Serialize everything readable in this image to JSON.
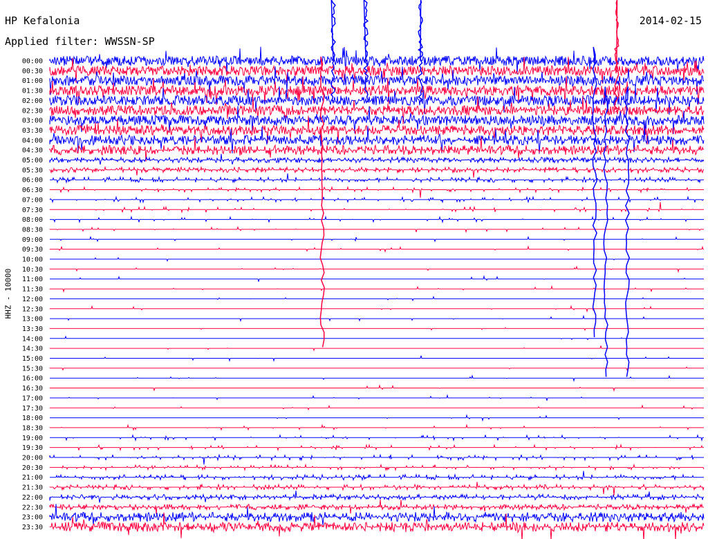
{
  "header": {
    "station": "HP Kefalonia",
    "filter_label": "Applied filter: WWSSN-SP",
    "date": "2014-02-15"
  },
  "chart_data": {
    "type": "line",
    "title": "HP Kefalonia",
    "subtitle": "Applied filter: WWSSN-SP",
    "date": "2014-02-15",
    "ylabel": "HHZ - 10000",
    "row_interval_minutes": 30,
    "rows": [
      "00:00",
      "00:30",
      "01:00",
      "01:30",
      "02:00",
      "02:30",
      "03:00",
      "03:30",
      "04:00",
      "04:30",
      "05:00",
      "05:30",
      "06:00",
      "06:30",
      "07:00",
      "07:30",
      "08:00",
      "08:30",
      "09:00",
      "09:30",
      "10:00",
      "10:30",
      "11:00",
      "11:30",
      "12:00",
      "12:30",
      "13:00",
      "13:30",
      "14:00",
      "14:30",
      "15:00",
      "15:30",
      "16:00",
      "16:30",
      "17:00",
      "17:30",
      "18:00",
      "18:30",
      "19:00",
      "19:30",
      "20:00",
      "20:30",
      "21:00",
      "21:30",
      "22:00",
      "22:30",
      "23:00",
      "23:30"
    ],
    "row_colors": [
      "#0000ff",
      "#ff0040"
    ],
    "activity_level": [
      0.95,
      0.9,
      0.95,
      0.9,
      0.9,
      0.85,
      0.9,
      0.75,
      0.7,
      0.6,
      0.5,
      0.45,
      0.25,
      0.12,
      0.08,
      0.05,
      0.04,
      0.03,
      0.02,
      0.02,
      0.01,
      0.01,
      0.01,
      0.01,
      0.01,
      0.01,
      0.01,
      0.01,
      0.01,
      0.01,
      0.01,
      0.01,
      0.01,
      0.01,
      0.01,
      0.01,
      0.01,
      0.02,
      0.06,
      0.08,
      0.12,
      0.15,
      0.25,
      0.3,
      0.4,
      0.5,
      0.6,
      0.7
    ],
    "large_events": [
      {
        "row": "00:00",
        "minute": 13,
        "direction": "up"
      },
      {
        "row": "00:00",
        "minute": 14.5,
        "direction": "up"
      },
      {
        "row": "00:00",
        "minute": 17,
        "direction": "up"
      },
      {
        "row": "00:00",
        "minute": 25,
        "direction": "down"
      },
      {
        "row": "00:30",
        "minute": 12.5,
        "direction": "down"
      },
      {
        "row": "00:30",
        "minute": 26,
        "direction": "up"
      },
      {
        "row": "02:00",
        "minute": 25.5,
        "direction": "down"
      },
      {
        "row": "02:00",
        "minute": 26.5,
        "direction": "down"
      }
    ],
    "grid": false,
    "legend": "none"
  }
}
